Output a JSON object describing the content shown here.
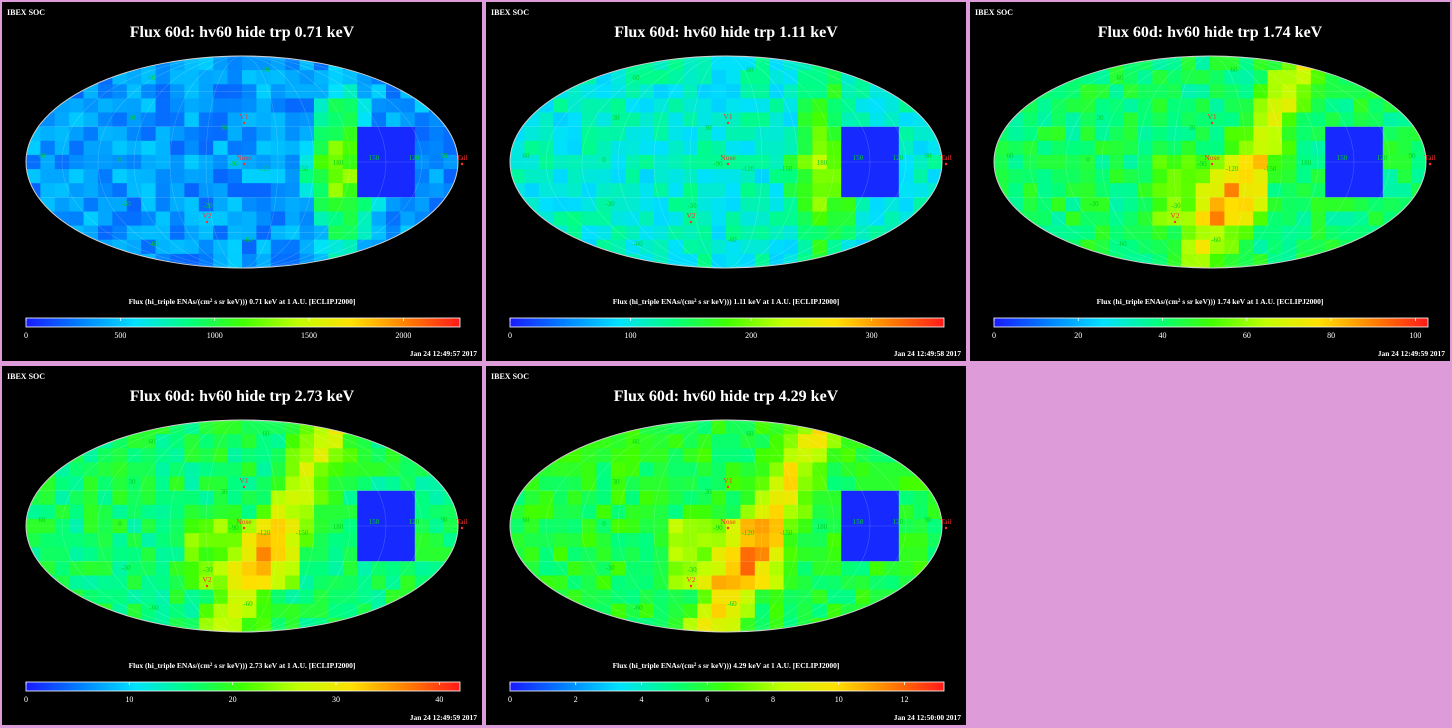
{
  "brand": "IBEX SOC",
  "colorbar_label_prefix": "Flux (hi_triple ENAs/(cm",
  "colorbar_label_sup": "2",
  "colorbar_label_suffix": " s sr keV))",
  "colorbar_label_tail": " at 1 A.U. [ECLIPJ2000]",
  "colormap": [
    "#1a1aff",
    "#0080ff",
    "#00e0ff",
    "#00ff80",
    "#40ff00",
    "#c0ff00",
    "#ffe000",
    "#ff8000",
    "#ff1a1a"
  ],
  "markers": {
    "nose": "Nose",
    "tail": "Tail",
    "v1": "V1",
    "v2": "V2"
  },
  "grid_labels": [
    "60",
    "30",
    "0",
    "-30",
    "-60",
    "-90",
    "-120",
    "-150",
    "180",
    "150",
    "120",
    "90",
    "60",
    "-30",
    "-60",
    "30",
    "60"
  ],
  "panels": [
    {
      "title": "Flux 60d: hv60 hide trp 0.71 keV",
      "energy": "0.71 keV",
      "timestamp": "Jan 24 12:49:57 2017",
      "ticks": [
        "0",
        "500",
        "1000",
        "1500",
        "2000"
      ],
      "tick_values": [
        0,
        500,
        1000,
        1500,
        2000
      ],
      "vmax": 2300,
      "base_level": 0.16
    },
    {
      "title": "Flux 60d: hv60 hide trp 1.11 keV",
      "energy": "1.11 keV",
      "timestamp": "Jan 24 12:49:58 2017",
      "ticks": [
        "0",
        "100",
        "200",
        "300"
      ],
      "tick_values": [
        0,
        100,
        200,
        300
      ],
      "vmax": 360,
      "base_level": 0.3
    },
    {
      "title": "Flux 60d: hv60 hide trp 1.74 keV",
      "energy": "1.74 keV",
      "timestamp": "Jan 24 12:49:59 2017",
      "ticks": [
        "0",
        "20",
        "40",
        "60",
        "80",
        "100"
      ],
      "tick_values": [
        0,
        20,
        40,
        60,
        80,
        100
      ],
      "vmax": 103,
      "base_level": 0.4
    },
    {
      "title": "Flux 60d: hv60 hide trp 2.73 keV",
      "energy": "2.73 keV",
      "timestamp": "Jan 24 12:49:59 2017",
      "ticks": [
        "0",
        "10",
        "20",
        "30",
        "40"
      ],
      "tick_values": [
        0,
        10,
        20,
        30,
        40
      ],
      "vmax": 42,
      "base_level": 0.4
    },
    {
      "title": "Flux 60d: hv60 hide trp 4.29 keV",
      "energy": "4.29 keV",
      "timestamp": "Jan 24 12:50:00 2017",
      "ticks": [
        "0",
        "2",
        "4",
        "6",
        "8",
        "10",
        "12"
      ],
      "tick_values": [
        0,
        2,
        4,
        6,
        8,
        10,
        12
      ],
      "vmax": 13.2,
      "base_level": 0.44
    }
  ]
}
